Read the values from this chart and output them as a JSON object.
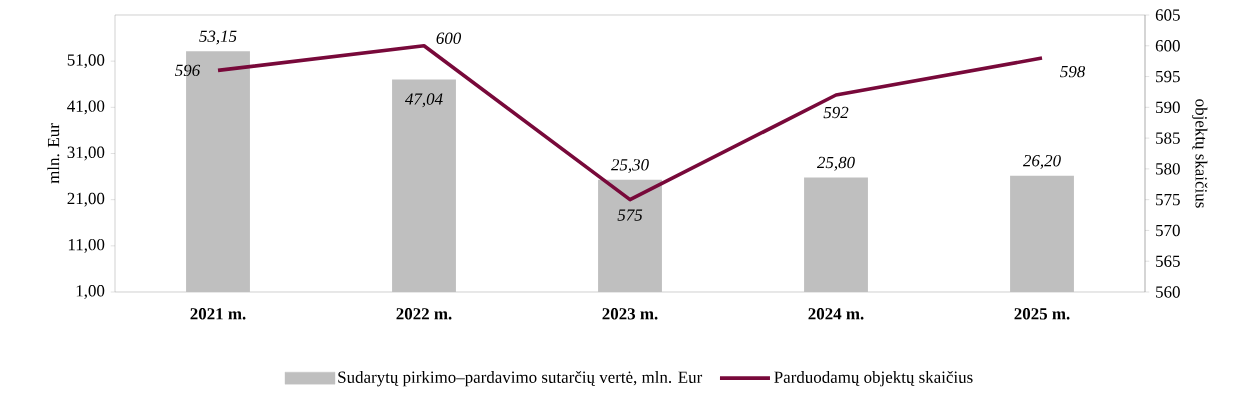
{
  "chart_data": {
    "type": "bar",
    "ylabel": "mln. Eur",
    "y2label": "objektų skaičius",
    "categories": [
      "2021 m.",
      "2022 m.",
      "2023 m.",
      "2024 m.",
      "2025 m."
    ],
    "series": [
      {
        "name": "Sudarytų pirkimo–pardavimo sutarčių vertė, mln. Eur",
        "color": "#bfbfbf",
        "values": [
          53.15,
          47.04,
          25.3,
          25.8,
          26.2
        ],
        "value_labels": [
          "53,15",
          "47,04",
          "25,30",
          "25,80",
          "26,20"
        ]
      },
      {
        "name": "Parduodamų objektų skaičius",
        "type": "line",
        "axis": "y2",
        "color": "#78093a",
        "values": [
          596,
          600,
          575,
          592,
          598
        ],
        "value_labels": [
          "596",
          "600",
          "575",
          "592",
          "598"
        ]
      }
    ],
    "ylim": [
      1,
      61
    ],
    "yticks": [
      {
        "value": 1,
        "label": "1,00"
      },
      {
        "value": 11,
        "label": "11,00"
      },
      {
        "value": 21,
        "label": "21,00"
      },
      {
        "value": 31,
        "label": "31,00"
      },
      {
        "value": 41,
        "label": "41,00"
      },
      {
        "value": 51,
        "label": "51,00"
      }
    ],
    "y2lim": [
      560,
      605
    ],
    "y2ticks": [
      560,
      565,
      570,
      575,
      580,
      585,
      590,
      595,
      600,
      605
    ],
    "legend": "bottom"
  }
}
